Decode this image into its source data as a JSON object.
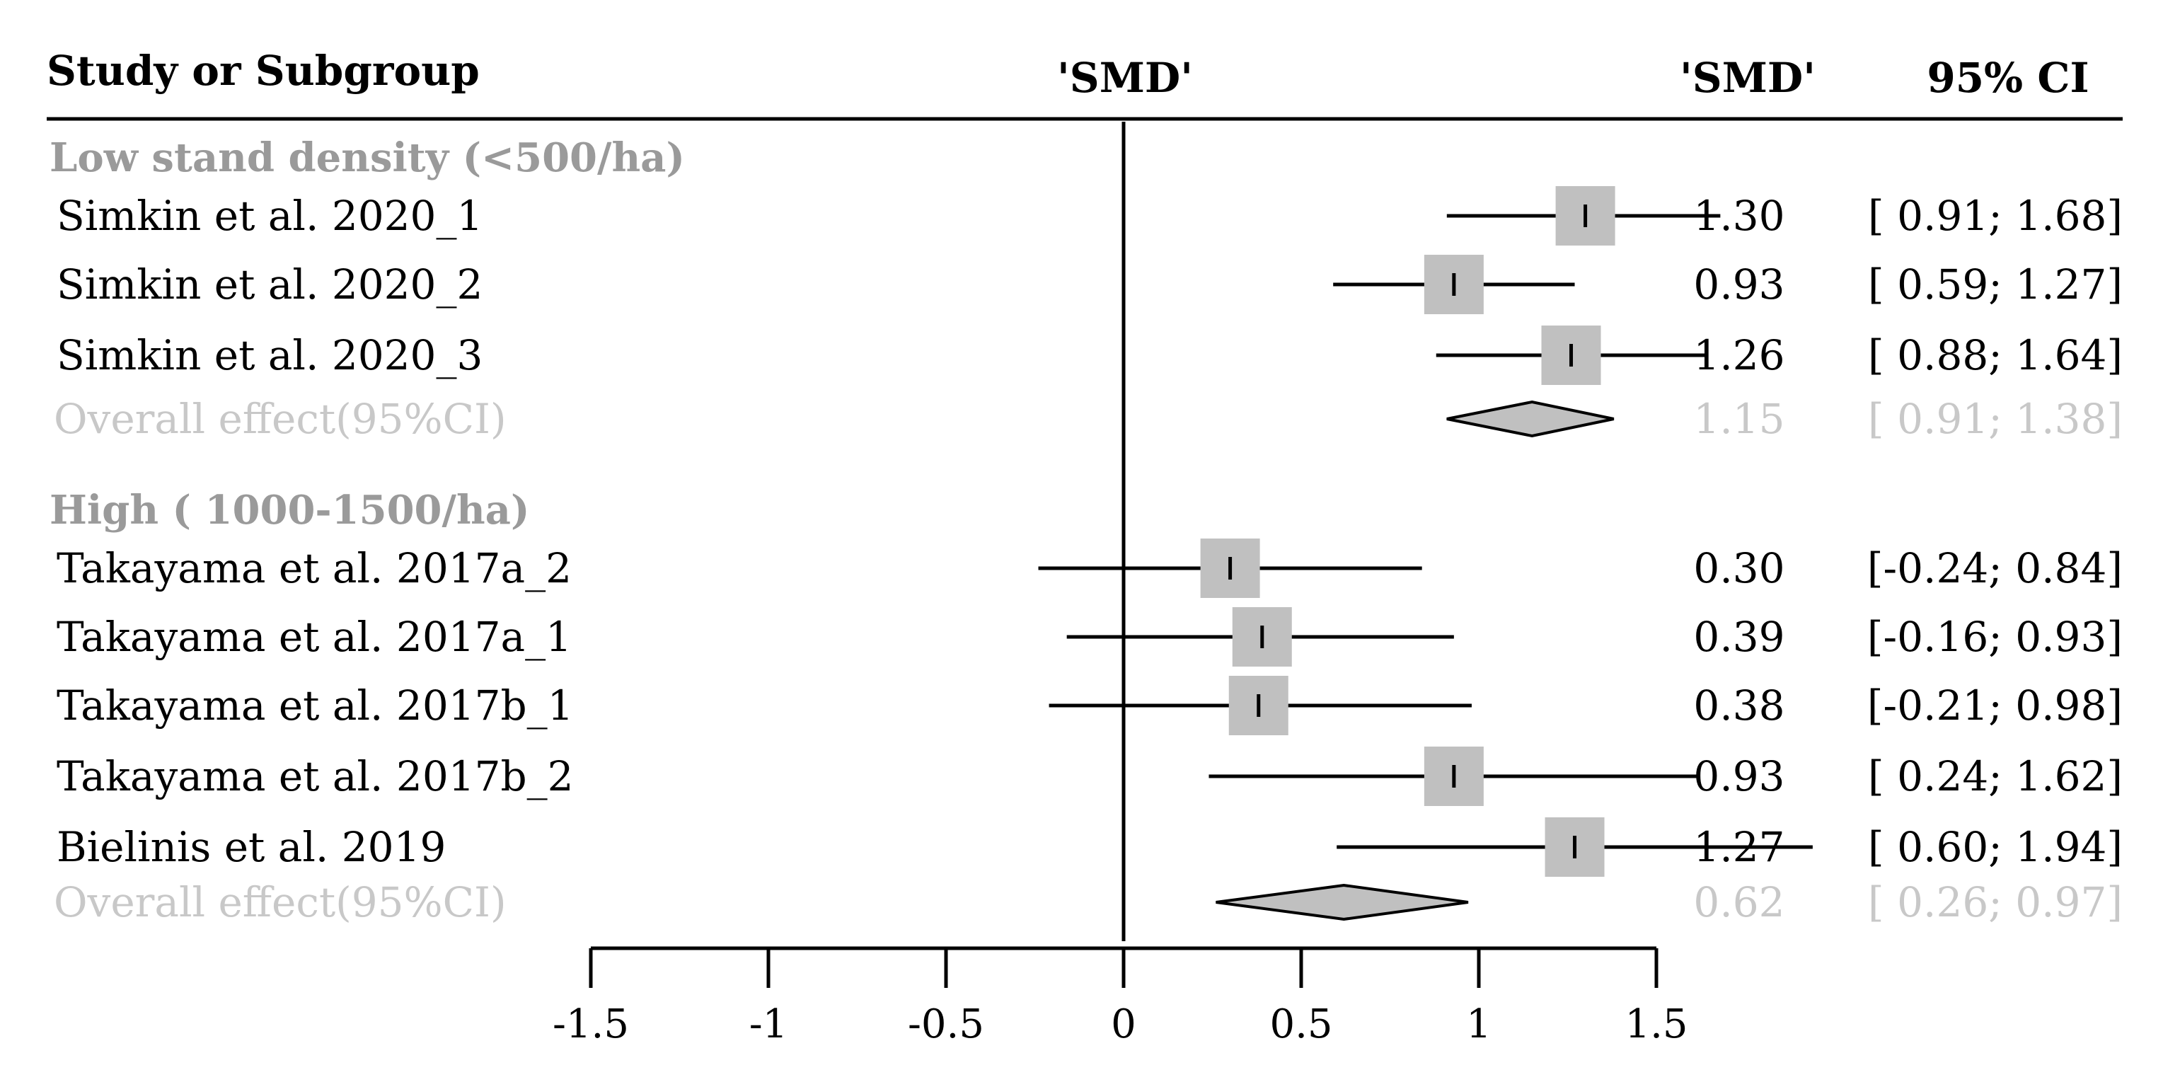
{
  "chart_data": {
    "type": "forest",
    "title": "",
    "columns": {
      "study": "Study or Subgroup",
      "plot": "'SMD'",
      "estimate": "'SMD'",
      "ci": "95% CI"
    },
    "x_axis": {
      "ticks": [
        -1.5,
        -1,
        -0.5,
        0,
        0.5,
        1,
        1.5
      ],
      "tick_labels": [
        "-1.5",
        "-1",
        "-0.5",
        "0",
        "0.5",
        "1",
        "1.5"
      ],
      "range": [
        -1.5,
        1.5
      ],
      "reference_line": 0
    },
    "colors": {
      "text": "#000000",
      "subgroup": "#9a9a9a",
      "overall_text": "#c8c8c8",
      "box": "#c0c0c0",
      "diamond_fill": "#c0c0c0"
    },
    "groups": [
      {
        "name": "Low stand density (<500/ha)",
        "studies": [
          {
            "label": "Simkin et al. 2020_1",
            "smd": 1.3,
            "lower": 0.91,
            "upper": 1.68,
            "smd_text": "1.30",
            "ci_text": "[ 0.91; 1.68]"
          },
          {
            "label": "Simkin et al. 2020_2",
            "smd": 0.93,
            "lower": 0.59,
            "upper": 1.27,
            "smd_text": "0.93",
            "ci_text": "[ 0.59; 1.27]"
          },
          {
            "label": "Simkin et al. 2020_3",
            "smd": 1.26,
            "lower": 0.88,
            "upper": 1.64,
            "smd_text": "1.26",
            "ci_text": "[ 0.88; 1.64]"
          }
        ],
        "overall": {
          "label": "Overall effect(95%CI)",
          "smd": 1.15,
          "lower": 0.91,
          "upper": 1.38,
          "smd_text": "1.15",
          "ci_text": "[ 0.91; 1.38]"
        }
      },
      {
        "name": "High ( 1000-1500/ha)",
        "studies": [
          {
            "label": "Takayama et al. 2017a_2",
            "smd": 0.3,
            "lower": -0.24,
            "upper": 0.84,
            "smd_text": "0.30",
            "ci_text": "[-0.24; 0.84]"
          },
          {
            "label": "Takayama et al. 2017a_1",
            "smd": 0.39,
            "lower": -0.16,
            "upper": 0.93,
            "smd_text": "0.39",
            "ci_text": "[-0.16; 0.93]"
          },
          {
            "label": "Takayama et al. 2017b_1",
            "smd": 0.38,
            "lower": -0.21,
            "upper": 0.98,
            "smd_text": "0.38",
            "ci_text": "[-0.21; 0.98]"
          },
          {
            "label": "Takayama et al. 2017b_2",
            "smd": 0.93,
            "lower": 0.24,
            "upper": 1.62,
            "smd_text": "0.93",
            "ci_text": "[ 0.24; 1.62]"
          },
          {
            "label": "Bielinis et al. 2019",
            "smd": 1.27,
            "lower": 0.6,
            "upper": 1.94,
            "smd_text": "1.27",
            "ci_text": "[ 0.60; 1.94]"
          }
        ],
        "overall": {
          "label": "Overall effect(95%CI)",
          "smd": 0.62,
          "lower": 0.26,
          "upper": 0.97,
          "smd_text": "0.62",
          "ci_text": "[ 0.26; 0.97]"
        }
      }
    ]
  }
}
